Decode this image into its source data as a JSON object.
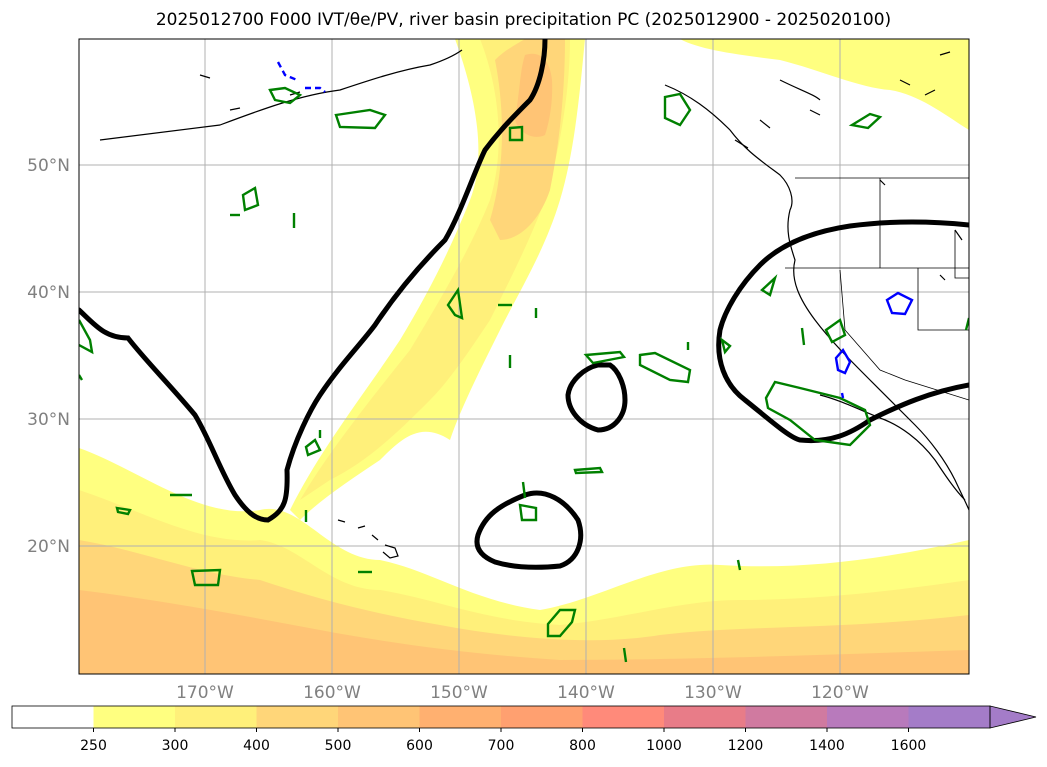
{
  "title": "2025012700 F000 IVT/θe/PV, river basin precipitation PC (2025012900 - 2025020100)",
  "map": {
    "lat_labels": [
      "50°N",
      "40°N",
      "30°N",
      "20°N"
    ],
    "lon_labels": [
      "170°W",
      "160°W",
      "150°W",
      "140°W",
      "130°W",
      "120°W"
    ],
    "colors": {
      "coast": "#000000",
      "grid": "#b0b0b0",
      "contour_black": "#000000",
      "contour_green": "#008000",
      "contour_blue": "#0000ff"
    }
  },
  "colorbar": {
    "labels": [
      "250",
      "300",
      "400",
      "500",
      "600",
      "700",
      "800",
      "1000",
      "1200",
      "1400",
      "1600"
    ],
    "colors": [
      "#ffffff",
      "#ffff80",
      "#fff07a",
      "#ffd679",
      "#ffc475",
      "#ffb070",
      "#ffa070",
      "#ff8a7a",
      "#e87c88",
      "#d07aa0",
      "#b87abc",
      "#a47cc8"
    ],
    "extend": "max"
  }
}
